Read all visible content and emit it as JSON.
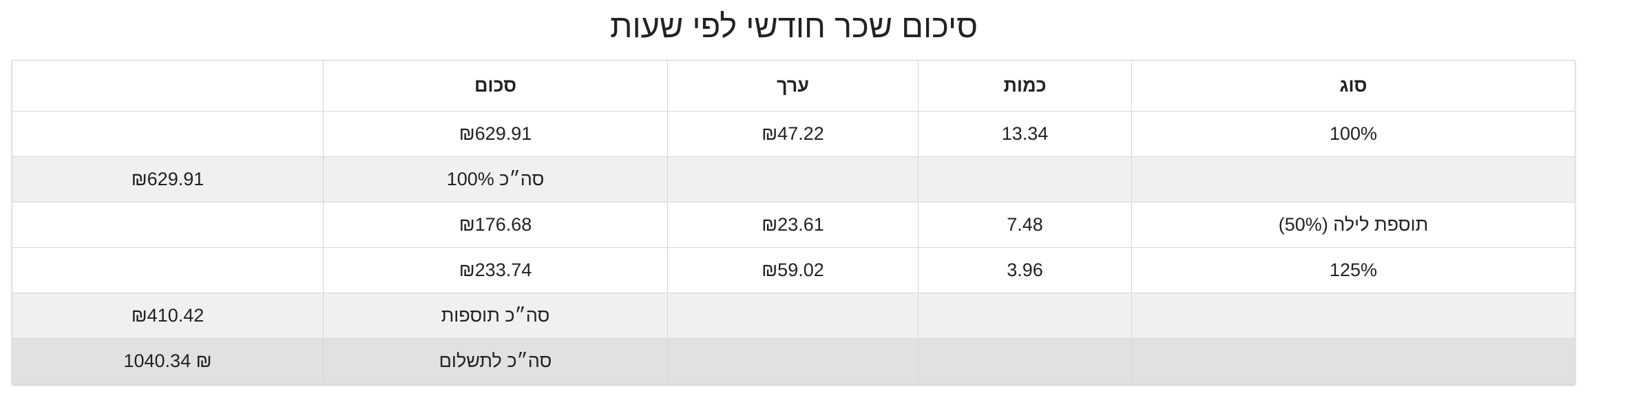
{
  "title": "סיכום שכר חודשי לפי שעות",
  "table": {
    "headers": {
      "total_col": "",
      "amount": "סכום",
      "value": "ערך",
      "quantity": "כמות",
      "type": "סוג"
    },
    "rows": [
      {
        "kind": "item",
        "type": "100%",
        "quantity": "13.34",
        "value": "₪47.22",
        "amount": "₪629.91",
        "total": ""
      },
      {
        "kind": "subtotal",
        "type": "",
        "quantity": "",
        "value": "",
        "amount": "סה״כ 100%",
        "total": "₪629.91"
      },
      {
        "kind": "item",
        "type": "תוספת לילה (50%)",
        "quantity": "7.48",
        "value": "₪23.61",
        "amount": "₪176.68",
        "total": ""
      },
      {
        "kind": "item",
        "type": "125%",
        "quantity": "3.96",
        "value": "₪59.02",
        "amount": "₪233.74",
        "total": ""
      },
      {
        "kind": "subtotal",
        "type": "",
        "quantity": "",
        "value": "",
        "amount": "סה״כ תוספות",
        "total": "₪410.42"
      },
      {
        "kind": "grand",
        "type": "",
        "quantity": "",
        "value": "",
        "amount": "סה״כ לתשלום",
        "total": "1040.34 ₪"
      }
    ]
  },
  "colors": {
    "subtotal_row": "#f0f0f0",
    "grand_total_row": "#e1e1e1",
    "border": "#d6d6d6"
  }
}
